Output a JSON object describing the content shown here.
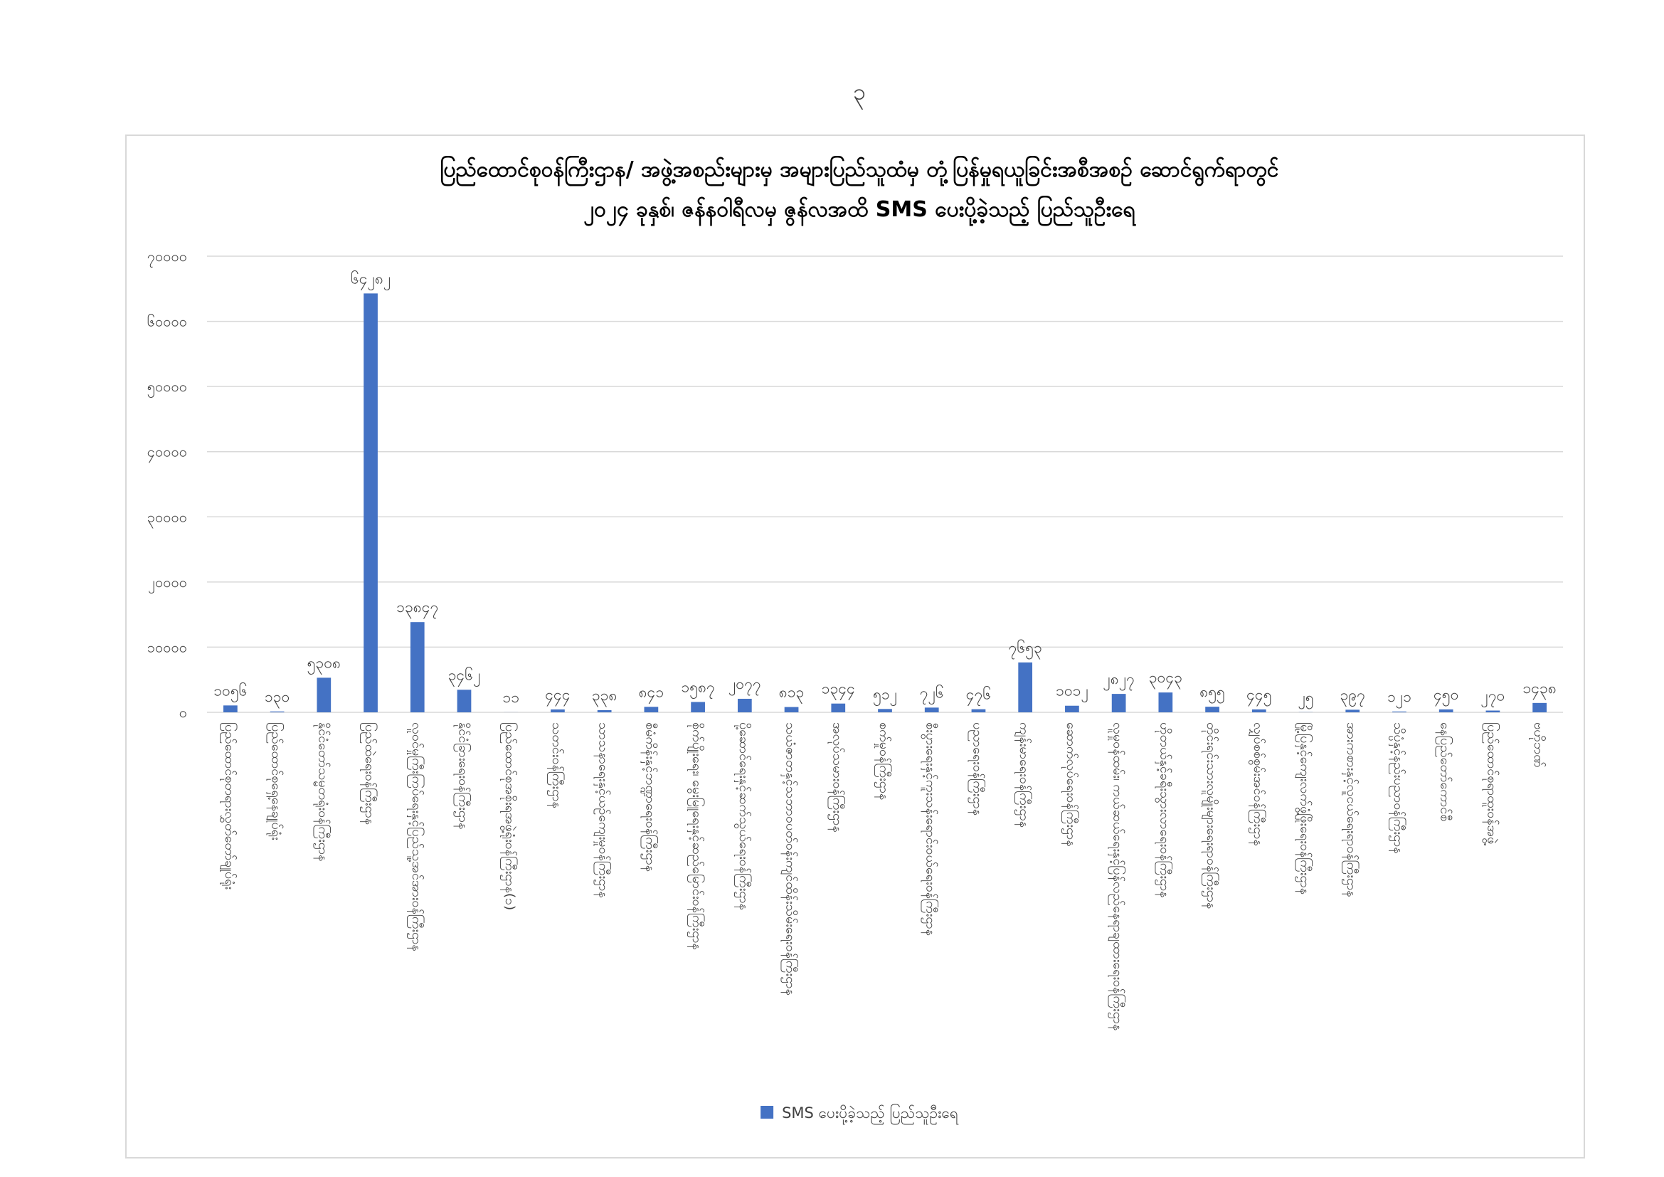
{
  "page_number": "၃",
  "chart_data": {
    "type": "bar",
    "title": "ပြည်ထောင်စုဝန်ကြီးဌာန/ အဖွဲ့အစည်းများမှ အများပြည်သူထံမှ တုံ့ပြန်မှုရယူခြင်းအစီအစဉ် ဆောင်ရွက်ရာတွင်",
    "subtitle": "၂၀၂၄ ခုနှစ်၊ ဇန်နဝါရီလမှ ဇွန်လအထိ SMS ပေးပို့ခဲ့သည့် ပြည်သူဦးရေ",
    "categories": [
      "ပြည်ထောင်စုတရားလွှတ်တော်ချုပ်ရုံး",
      "ပြည်ထောင်စုရှေ့နေချုပ်ရုံး",
      "နိုင်ငံတော်သမ္မတရုံးဝန်ကြီးဌာန",
      "ပြည်ထဲရေးဝန်ကြီးဌာန",
      "လူဝင်မှုကြီးကြပ်ရေးနှင့်ပြည်သူ့အင်အားဝန်ကြီးဌာန",
      "နိုင်ငံခြားရေးဝန်ကြီးဌာန",
      "ပြည်ထောင်စုအစိုးရအဖွဲ့ရုံးဝန်ကြီးဌာန(၁)",
      "သတင်းဝန်ကြီးဌာန",
      "သာသနာရေးနှင့်ယဉ်ကျေးမှုဝန်ကြီးဌာန",
      "စီမံကိန်းနှင့်ဘဏ္ဍာရေးဝန်ကြီးဌာန",
      "စိုက်ပျိုးရေး၊ မွေးမြူရေးနှင့်ဆည်မြောင်းဝန်ကြီးဌာန",
      "ပို့ဆောင်ရေးနှင့်ဆက်သွယ်ရေးဝန်ကြီးဌာန",
      "သယံဇာတနှင့်သဘာဝပတ်ဝန်းကျင်ထိန်းသိမ်းရေးဝန်ကြီးဌာန",
      "အလုပ်သမားဝန်ကြီးဌာန",
      "စက်မှုဝန်ကြီးဌာန",
      "စီးပွားရေးနှင့်ကူးသန်းရောင်းဝယ်ရေးဝန်ကြီးဌာန",
      "ပညာရေးဝန်ကြီးဌာန",
      "ကျန်းမာရေးဝန်ကြီးဌာန",
      "ဆောက်လုပ်ရေးဝန်ကြီးဌာန",
      "လူမှုဝန်ထမ်း၊ ကယ်ဆယ်ရေးနှင့်ပြန်လည်နေရာချထားရေးဝန်ကြီးဌာန",
      "ဟိုတယ်နှင့်ခရီးသွားလာရေးဝန်ကြီးဌာန",
      "တိုင်းရင်းသားလူမျိုးများရေးရာဝန်ကြီးဌာန",
      "လျှပ်စစ်စွမ်းအင်ဝန်ကြီးဌာန",
      "မြို့ပြနှင့်ကျေးလက်ဖွံ့ဖြိုးရေးဝန်ကြီးဌာန",
      "အားကစားနှင့်လူငယ်ရေးရာဝန်ကြီးဌာန",
      "သိပ္ပံနှင့်နည်းပညာဝန်ကြီးဌာန",
      "နေပြည်တော်ကောင်စီ",
      "ပြည်ထောင်စုရာထူးဝန်အဖွဲ့",
      "ဗဟိုဘဏ်"
    ],
    "values": [
      1056,
      130,
      5308,
      64282,
      13847,
      3462,
      11,
      444,
      338,
      841,
      1587,
      2077,
      813,
      1344,
      512,
      726,
      476,
      7653,
      1012,
      2827,
      3043,
      855,
      445,
      25,
      397,
      121,
      450,
      270,
      1438
    ],
    "value_labels": [
      "၁၀၅၆",
      "၁၃၀",
      "၅၃၀၈",
      "၆၄၂၈၂",
      "၁၃၈၄၇",
      "၃၄၆၂",
      "၁၁",
      "၄၄၄",
      "၃၃၈",
      "၈၄၁",
      "၁၅၈၇",
      "၂၀၇၇",
      "၈၁၃",
      "၁၃၄၄",
      "၅၁၂",
      "၇၂၆",
      "၄၇၆",
      "၇၆၅၃",
      "၁၀၁၂",
      "၂၈၂၇",
      "၃၀၄၃",
      "၈၅၅",
      "၄၄၅",
      "၂၅",
      "၃၉၇",
      "၁၂၁",
      "၄၅၀",
      "၂၇၀",
      "၁၄၃၈"
    ],
    "series_name": "SMS ပေးပို့ခဲ့သည့် ပြည်သူဦးရေ",
    "color": "#4472c4",
    "ylim": [
      0,
      70000
    ],
    "yticks": [
      {
        "value": 0,
        "label": "၀"
      },
      {
        "value": 10000,
        "label": "၁၀၀၀၀"
      },
      {
        "value": 20000,
        "label": "၂၀၀၀၀"
      },
      {
        "value": 30000,
        "label": "၃၀၀၀၀"
      },
      {
        "value": 40000,
        "label": "၄၀၀၀၀"
      },
      {
        "value": 50000,
        "label": "၅၀၀၀၀"
      },
      {
        "value": 60000,
        "label": "၆၀၀၀၀"
      },
      {
        "value": 70000,
        "label": "၇၀၀၀၀"
      }
    ],
    "grid": true,
    "legend": "bottom"
  }
}
